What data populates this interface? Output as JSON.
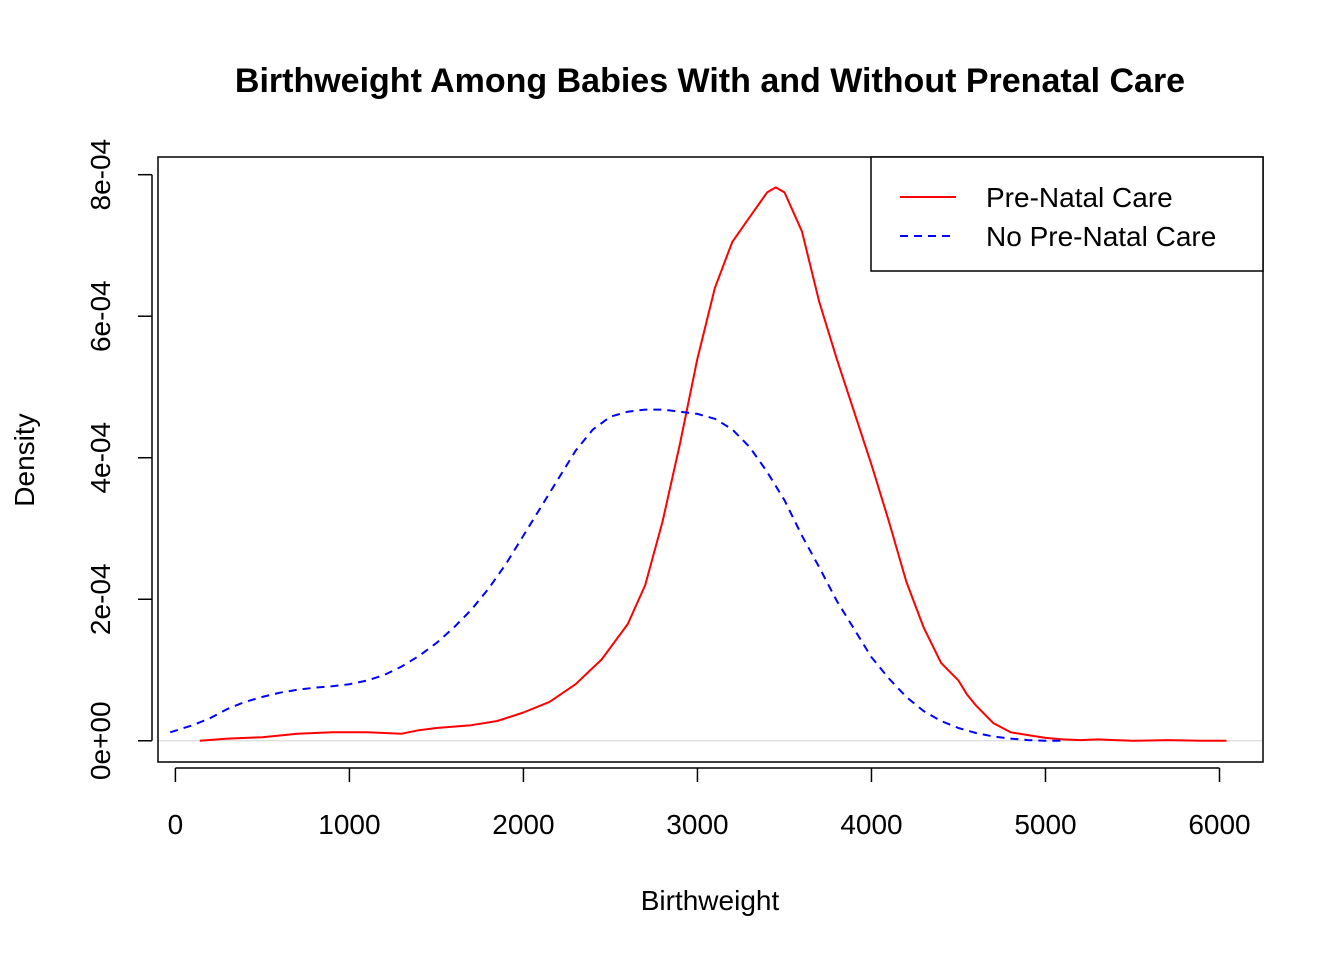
{
  "chart_data": {
    "type": "line",
    "title": "Birthweight Among Babies With and Without Prenatal Care",
    "xlabel": "Birthweight",
    "ylabel": "Density",
    "xlim": [
      -100,
      6250
    ],
    "ylim": [
      -3e-05,
      0.000825
    ],
    "x_ticks": [
      {
        "value": 0,
        "label": "0"
      },
      {
        "value": 1000,
        "label": "1000"
      },
      {
        "value": 2000,
        "label": "2000"
      },
      {
        "value": 3000,
        "label": "3000"
      },
      {
        "value": 4000,
        "label": "4000"
      },
      {
        "value": 5000,
        "label": "5000"
      },
      {
        "value": 6000,
        "label": "6000"
      }
    ],
    "y_ticks": [
      {
        "value": 0,
        "label": "0e+00"
      },
      {
        "value": 0.0002,
        "label": "2e-04"
      },
      {
        "value": 0.0004,
        "label": "4e-04"
      },
      {
        "value": 0.0006,
        "label": "6e-04"
      },
      {
        "value": 0.0008,
        "label": "8e-04"
      }
    ],
    "zero_line": true,
    "grid": false,
    "legend_position": "top-right",
    "series": [
      {
        "name": "Pre-Natal Care",
        "color": "#ff0000",
        "dash": "solid",
        "x": [
          140,
          300,
          500,
          700,
          900,
          1100,
          1300,
          1400,
          1500,
          1700,
          1850,
          2000,
          2150,
          2300,
          2450,
          2600,
          2700,
          2800,
          2900,
          3000,
          3100,
          3200,
          3300,
          3400,
          3450,
          3500,
          3600,
          3700,
          3800,
          3900,
          4000,
          4100,
          4200,
          4300,
          4400,
          4500,
          4550,
          4600,
          4700,
          4800,
          4900,
          5000,
          5100,
          5200,
          5300,
          5400,
          5500,
          5700,
          5900,
          6040
        ],
        "y": [
          0,
          3e-06,
          5e-06,
          1e-05,
          1.2e-05,
          1.2e-05,
          1e-05,
          1.5e-05,
          1.8e-05,
          2.2e-05,
          2.8e-05,
          4e-05,
          5.5e-05,
          8e-05,
          0.000115,
          0.000165,
          0.00022,
          0.00031,
          0.00042,
          0.00054,
          0.00064,
          0.000705,
          0.00074,
          0.000775,
          0.000782,
          0.000775,
          0.00072,
          0.00062,
          0.00054,
          0.000465,
          0.00039,
          0.00031,
          0.000225,
          0.00016,
          0.00011,
          8.5e-05,
          6.5e-05,
          5e-05,
          2.5e-05,
          1.2e-05,
          8e-06,
          4e-06,
          2e-06,
          1e-06,
          2e-06,
          1e-06,
          0,
          1e-06,
          0,
          0
        ]
      },
      {
        "name": "No Pre-Natal Care",
        "color": "#0000ff",
        "dash": "dashed",
        "x": [
          -30,
          100,
          200,
          300,
          400,
          500,
          600,
          700,
          800,
          900,
          1000,
          1100,
          1200,
          1300,
          1400,
          1500,
          1600,
          1700,
          1800,
          1900,
          2000,
          2100,
          2200,
          2300,
          2400,
          2500,
          2600,
          2700,
          2800,
          2900,
          3000,
          3100,
          3200,
          3300,
          3400,
          3500,
          3600,
          3700,
          3800,
          3900,
          4000,
          4100,
          4200,
          4300,
          4400,
          4500,
          4600,
          4700,
          4800,
          4900,
          5000,
          5100
        ],
        "y": [
          1.2e-05,
          2.2e-05,
          3.2e-05,
          4.5e-05,
          5.5e-05,
          6.2e-05,
          6.8e-05,
          7.2e-05,
          7.5e-05,
          7.7e-05,
          8e-05,
          8.5e-05,
          9.3e-05,
          0.000105,
          0.00012,
          0.000138,
          0.00016,
          0.000185,
          0.000215,
          0.00025,
          0.00029,
          0.00033,
          0.00037,
          0.00041,
          0.00044,
          0.000458,
          0.000465,
          0.000468,
          0.000468,
          0.000465,
          0.000462,
          0.000455,
          0.00044,
          0.000415,
          0.00038,
          0.00034,
          0.00029,
          0.000245,
          0.000198,
          0.000158,
          0.000118,
          8.8e-05,
          6.2e-05,
          4.2e-05,
          2.8e-05,
          1.8e-05,
          1.1e-05,
          6e-06,
          3e-06,
          1e-06,
          0,
          0
        ]
      }
    ]
  }
}
